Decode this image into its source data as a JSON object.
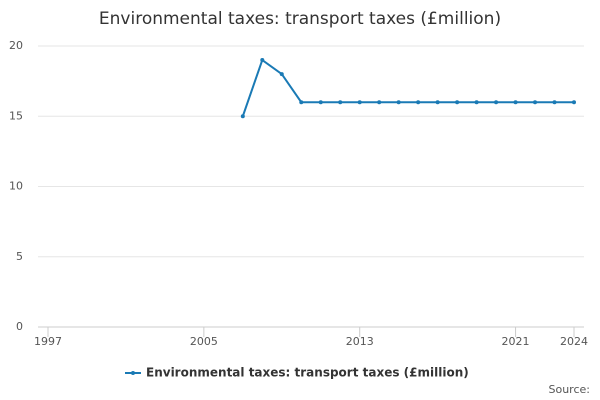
{
  "chart_data": {
    "type": "line",
    "title": "Environmental taxes: transport taxes (£million)",
    "x": [
      2007,
      2008,
      2009,
      2010,
      2011,
      2012,
      2013,
      2014,
      2015,
      2016,
      2017,
      2018,
      2019,
      2020,
      2021,
      2022,
      2023,
      2024
    ],
    "series": [
      {
        "name": "Environmental taxes: transport taxes (£million)",
        "color": "#1a7ab5",
        "values": [
          15,
          19,
          18,
          16,
          16,
          16,
          16,
          16,
          16,
          16,
          16,
          16,
          16,
          16,
          16,
          16,
          16,
          16
        ]
      }
    ],
    "xlim": [
      1997,
      2024
    ],
    "xticks": [
      1997,
      2005,
      2013,
      2021,
      2024
    ],
    "ylim": [
      0,
      20
    ],
    "yticks": [
      0,
      5,
      10,
      15,
      20
    ],
    "grid": true,
    "source": "Source:"
  }
}
